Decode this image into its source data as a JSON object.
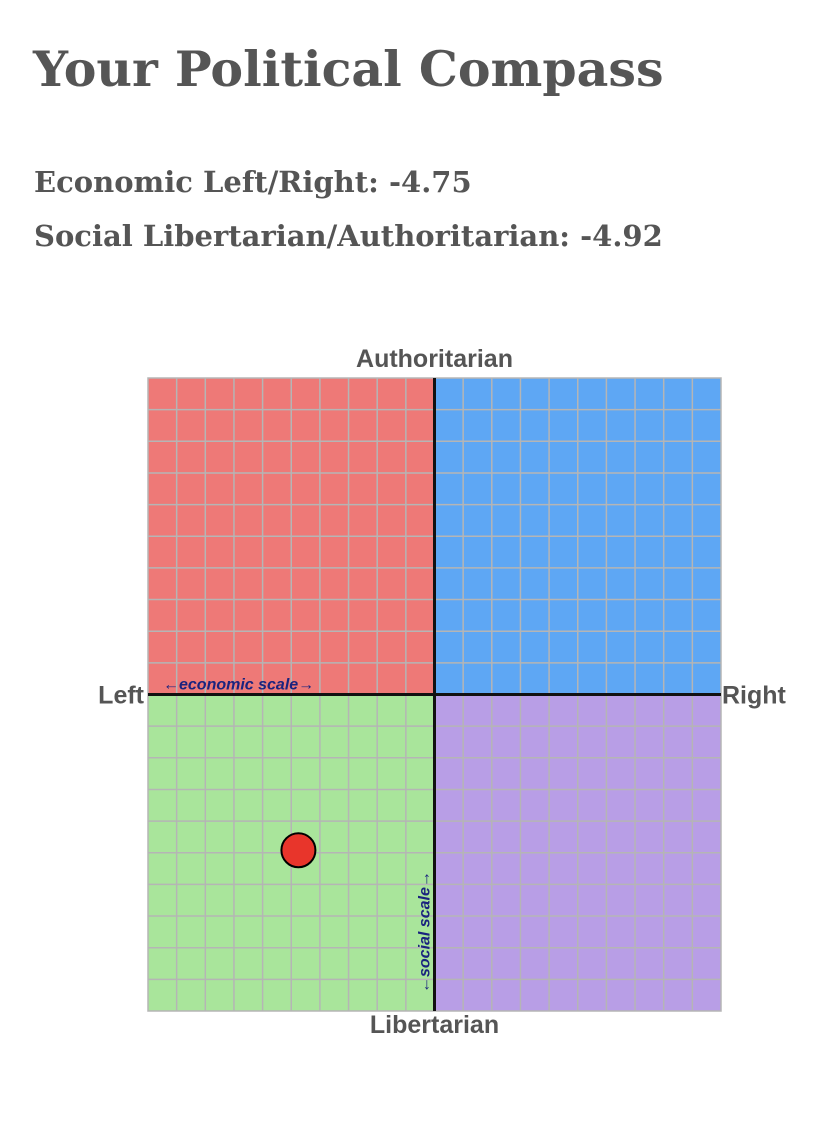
{
  "title": "Your Political Compass",
  "scores": {
    "economic_label": "Economic Left/Right:",
    "economic_value": "-4.75",
    "social_label": "Social Libertarian/Authoritarian:",
    "social_value": "-4.92"
  },
  "chart_data": {
    "type": "scatter",
    "axis_labels": {
      "top": "Authoritarian",
      "bottom": "Libertarian",
      "left": "Left",
      "right": "Right"
    },
    "scale_labels": {
      "economic": "←economic scale→",
      "social": "←social scale→"
    },
    "xlim": [
      -10,
      10
    ],
    "ylim": [
      -10,
      10
    ],
    "grid": true,
    "grid_divisions": 20,
    "quadrant_colors": {
      "authoritarian_left": "#ee7977",
      "authoritarian_right": "#5ea7f4",
      "libertarian_left": "#a9e59b",
      "libertarian_right": "#b89ee6"
    },
    "grid_color": "#b5b5b5",
    "axis_color": "#111111",
    "label_color": "#555555",
    "scale_label_color": "#1a237e",
    "point": {
      "x": -4.75,
      "y": -4.92,
      "color": "#e8352b",
      "stroke": "#000000"
    }
  }
}
